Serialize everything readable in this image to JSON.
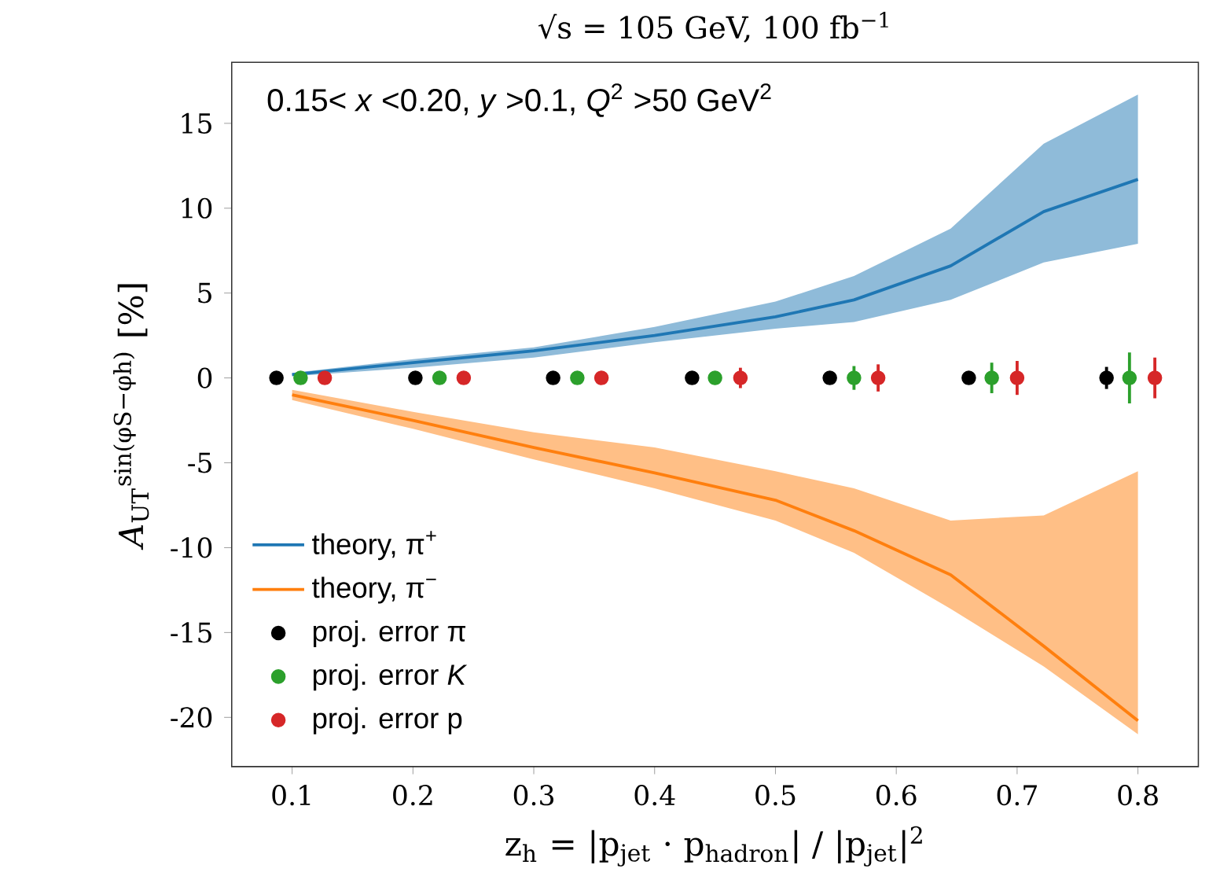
{
  "chart_data": {
    "type": "line",
    "title": "√s = 105 GeV, 100 fb$^{−1}$",
    "xlabel": "z$_{h}$ = |p$_{jet}$ · p$_{hadron}$| / |p$_{jet}$|$^{2}$",
    "ylabel": "*A*$_{UT}$$^{sin(φS−φh)}$ [%]",
    "annotations": [
      "0.15< *x* <0.20, *y* >0.1, *Q*$^{2}$ >50 GeV$^{2}$"
    ],
    "xlim": [
      0.05,
      0.85
    ],
    "xticks": [
      0.1,
      0.2,
      0.3,
      0.4,
      0.5,
      0.6,
      0.7,
      0.8
    ],
    "ylim": [
      -22.9,
      18.6
    ],
    "yticks": [
      -20,
      -15,
      -10,
      -5,
      0,
      5,
      10,
      15
    ],
    "legend": "bottom left",
    "series": [
      {
        "name": "theory, π$^{+}$",
        "color": "#1f77b4",
        "marker": "none",
        "x": [
          0.1,
          0.2,
          0.3,
          0.4,
          0.5,
          0.565,
          0.645,
          0.722,
          0.8
        ],
        "values": [
          0.2,
          0.9,
          1.6,
          2.5,
          3.6,
          4.6,
          6.6,
          9.8,
          11.7
        ],
        "lower": [
          0.1,
          0.6,
          1.2,
          2.1,
          2.9,
          3.3,
          4.6,
          6.8,
          7.9
        ],
        "upper": [
          0.3,
          1.1,
          1.8,
          3.0,
          4.5,
          6.0,
          8.8,
          13.8,
          16.7
        ]
      },
      {
        "name": "theory, π$^{−}$",
        "color": "#ff7f0e",
        "marker": "none",
        "x": [
          0.1,
          0.2,
          0.3,
          0.4,
          0.5,
          0.565,
          0.645,
          0.722,
          0.8
        ],
        "values": [
          -1.0,
          -2.5,
          -4.1,
          -5.6,
          -7.2,
          -9.0,
          -11.6,
          -15.8,
          -20.2
        ],
        "lower": [
          -1.3,
          -3.0,
          -4.8,
          -6.5,
          -8.4,
          -10.3,
          -13.6,
          -17.0,
          -21.0
        ],
        "upper": [
          -0.7,
          -2.0,
          -3.2,
          -4.1,
          -5.5,
          -6.5,
          -8.4,
          -8.1,
          -5.5
        ]
      },
      {
        "name": "proj. error π",
        "type": "scatter",
        "color": "#000000",
        "marker": "circle",
        "x": [
          0.087,
          0.202,
          0.316,
          0.431,
          0.545,
          0.66,
          0.774
        ],
        "values": [
          0,
          0,
          0,
          0,
          0,
          0,
          0
        ],
        "errors": [
          0.1,
          0.1,
          0.1,
          0.1,
          0.1,
          0.2,
          0.65
        ]
      },
      {
        "name": "proj. error *K*",
        "type": "scatter",
        "color": "#2ca02c",
        "marker": "circle",
        "x": [
          0.107,
          0.222,
          0.336,
          0.45,
          0.565,
          0.679,
          0.793
        ],
        "values": [
          0,
          0,
          0,
          0,
          0,
          0,
          0
        ],
        "errors": [
          0.1,
          0.1,
          0.1,
          0.4,
          0.7,
          0.9,
          1.5
        ]
      },
      {
        "name": "proj. error p",
        "type": "scatter",
        "color": "#d62728",
        "marker": "circle",
        "x": [
          0.127,
          0.242,
          0.356,
          0.471,
          0.585,
          0.7,
          0.814
        ],
        "values": [
          0,
          0,
          0,
          0,
          0,
          0,
          0
        ],
        "errors": [
          0.1,
          0.1,
          0.1,
          0.6,
          0.8,
          1.0,
          1.2
        ]
      }
    ]
  }
}
